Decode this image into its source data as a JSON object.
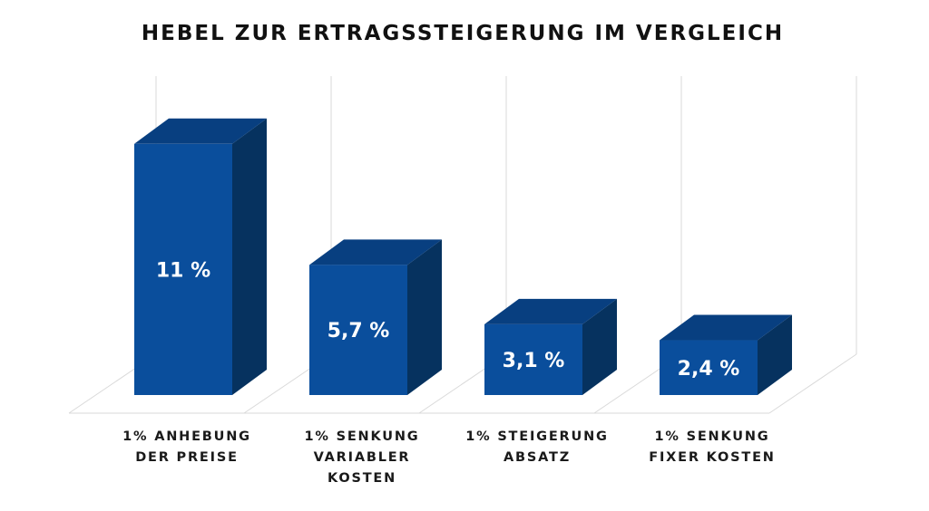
{
  "chart_data": {
    "type": "bar",
    "title": "HEBEL ZUR ERTRAGSSTEIGERUNG IM VERGLEICH",
    "categories": [
      [
        "1% ANHEBUNG",
        "DER PREISE"
      ],
      [
        "1% SENKUNG",
        "VARIABLER",
        "KOSTEN"
      ],
      [
        "1% STEIGERUNG",
        "ABSATZ"
      ],
      [
        "1% SENKUNG",
        "FIXER KOSTEN"
      ]
    ],
    "values": [
      11,
      5.7,
      3.1,
      2.4
    ],
    "value_labels": [
      "11 %",
      "5,7 %",
      "3,1 %",
      "2,4 %"
    ],
    "ylim": [
      0,
      11
    ],
    "grid": true,
    "style": "3d-column",
    "colors": {
      "front": "#0a4e9c",
      "top": "#083f80",
      "side": "#06325f",
      "grid": "#d9d9d9"
    }
  }
}
